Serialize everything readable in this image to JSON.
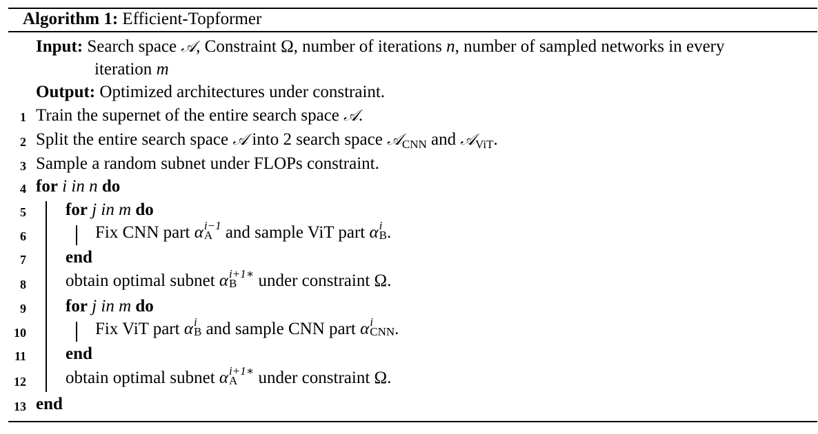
{
  "algorithm": {
    "label": "Algorithm 1:",
    "name": "Efficient-Topformer"
  },
  "input": {
    "label": "Input:",
    "pre_A": "Search space",
    "A": "𝒜",
    "after_A": ", Constraint Ω, number of iterations",
    "n": "n",
    "after_n": ", number of sampled networks in every",
    "line2": "iteration",
    "m": "m"
  },
  "output": {
    "label": "Output:",
    "text": "Optimized architectures under constraint."
  },
  "steps": [
    {
      "num": "1",
      "text_a": "Train the supernet of the entire search space",
      "A": "𝒜",
      "text_b": "."
    },
    {
      "num": "2",
      "text_a": "Split the entire search space",
      "A": "𝒜",
      "text_b": "into 2 search space",
      "sub1": "CNN",
      "and": "and",
      "sub2": "ViT",
      "end": "."
    },
    {
      "num": "3",
      "text": "Sample a random subnet under FLOPs constraint."
    },
    {
      "num": "4",
      "kw_for": "for",
      "var": "i in n",
      "kw_do": "do"
    },
    {
      "num": "5",
      "kw_for": "for",
      "var": "j in m",
      "kw_do": "do"
    },
    {
      "num": "6",
      "text_a": "Fix CNN part",
      "alpha": "α",
      "sup1": "i−1",
      "sub1": "A",
      "text_b": "and sample ViT part",
      "sup2": "i",
      "sub2": "B",
      "end": "."
    },
    {
      "num": "7",
      "kw": "end"
    },
    {
      "num": "8",
      "text_a": "obtain optimal subnet",
      "alpha": "α",
      "sup": "i+1∗",
      "sub": "B",
      "text_b": "under constraint Ω."
    },
    {
      "num": "9",
      "kw_for": "for",
      "var": "j in m",
      "kw_do": "do"
    },
    {
      "num": "10",
      "text_a": "Fix ViT part",
      "alpha": "α",
      "sup1": "i",
      "sub1": "B",
      "text_b": "and sample CNN part",
      "sup2": "i",
      "sub2": "CNN",
      "end": "."
    },
    {
      "num": "11",
      "kw": "end"
    },
    {
      "num": "12",
      "text_a": "obtain optimal subnet",
      "alpha": "α",
      "sup": "i+1∗",
      "sub": "A",
      "text_b": "under constraint Ω."
    },
    {
      "num": "13",
      "kw": "end"
    }
  ]
}
